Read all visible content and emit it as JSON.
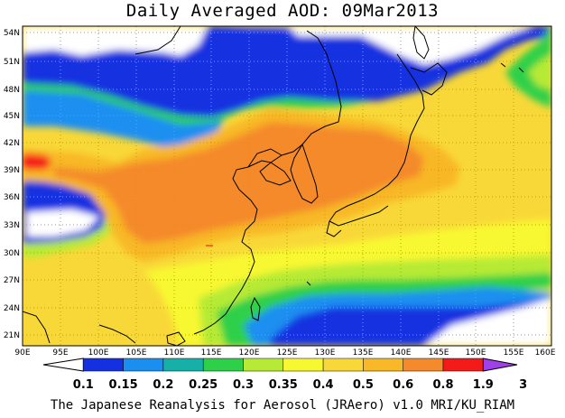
{
  "title": "Daily Averaged AOD: 09Mar2013",
  "footer": "The Japanese Reanalysis for Aerosol (JRAero) v1.0 MRI/KU_RIAM",
  "map": {
    "lon_range": [
      90,
      160
    ],
    "lat_range": [
      19.5,
      55.5
    ],
    "lat_ticks": [
      "54N",
      "51N",
      "48N",
      "45N",
      "42N",
      "39N",
      "36N",
      "33N",
      "30N",
      "27N",
      "24N",
      "21N"
    ],
    "lon_ticks": [
      "90E",
      "95E",
      "100E",
      "105E",
      "110E",
      "115E",
      "120E",
      "125E",
      "130E",
      "135E",
      "140E",
      "145E",
      "150E",
      "155E",
      "160E"
    ]
  },
  "colorbar": {
    "labels": [
      "0.1",
      "0.15",
      "0.2",
      "0.25",
      "0.3",
      "0.35",
      "0.4",
      "0.5",
      "0.6",
      "0.8",
      "1.9",
      "3"
    ],
    "colors": [
      "#ffffff",
      "#1530e0",
      "#1a8ff0",
      "#16b0a8",
      "#2ed04a",
      "#b6ea36",
      "#f8f832",
      "#f8d838",
      "#f8b828",
      "#f48a2c",
      "#f41a1a",
      "#a040e8"
    ]
  }
}
